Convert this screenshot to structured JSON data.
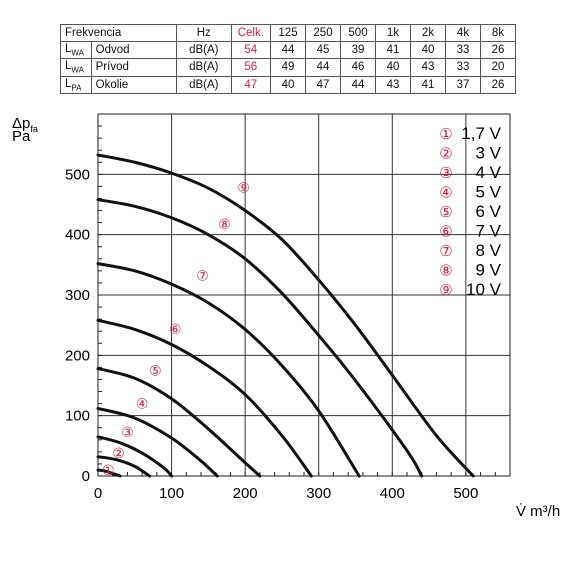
{
  "noise_table": {
    "header": [
      "Frekvencia",
      "Hz",
      "Celk.",
      "125",
      "250",
      "500",
      "1k",
      "2k",
      "4k",
      "8k"
    ],
    "rows": [
      {
        "label_main": "L",
        "label_sub": "WA",
        "name": "Odvod",
        "unit": "dB(A)",
        "total": "54",
        "values": [
          "44",
          "45",
          "39",
          "41",
          "40",
          "33",
          "26"
        ]
      },
      {
        "label_main": "L",
        "label_sub": "WA",
        "name": "Prívod",
        "unit": "dB(A)",
        "total": "56",
        "values": [
          "49",
          "44",
          "46",
          "40",
          "43",
          "33",
          "20"
        ]
      },
      {
        "label_main": "L",
        "label_sub": "PA",
        "name": "Okolie",
        "unit": "dB(A)",
        "total": "47",
        "values": [
          "40",
          "47",
          "44",
          "43",
          "41",
          "37",
          "26"
        ]
      }
    ],
    "total_color": "#d0203f"
  },
  "chart_data": {
    "type": "line",
    "ylabel_main": "Δp",
    "ylabel_sub": "fa",
    "ylabel_unit": "Pa",
    "xlabel": "V̇ m³/h",
    "xlim": [
      0,
      560
    ],
    "ylim": [
      0,
      600
    ],
    "x_ticks": [
      0,
      100,
      200,
      300,
      400,
      500
    ],
    "y_ticks": [
      0,
      100,
      200,
      300,
      400,
      500
    ],
    "grid": true,
    "legend_position": "top-right",
    "marker_color": "#d0203f",
    "series": [
      {
        "marker": "①",
        "name": "1,7 V",
        "points": [
          [
            0,
            10
          ],
          [
            10,
            8
          ],
          [
            20,
            4
          ],
          [
            30,
            0
          ]
        ]
      },
      {
        "marker": "②",
        "name": "3 V",
        "points": [
          [
            0,
            32
          ],
          [
            25,
            27
          ],
          [
            50,
            16
          ],
          [
            70,
            0
          ]
        ]
      },
      {
        "marker": "③",
        "name": "4 V",
        "points": [
          [
            0,
            65
          ],
          [
            30,
            55
          ],
          [
            60,
            38
          ],
          [
            90,
            13
          ],
          [
            100,
            0
          ]
        ]
      },
      {
        "marker": "④",
        "name": "5 V",
        "points": [
          [
            0,
            112
          ],
          [
            50,
            96
          ],
          [
            100,
            63
          ],
          [
            140,
            25
          ],
          [
            162,
            0
          ]
        ]
      },
      {
        "marker": "⑤",
        "name": "6 V",
        "points": [
          [
            0,
            178
          ],
          [
            50,
            162
          ],
          [
            100,
            128
          ],
          [
            150,
            78
          ],
          [
            200,
            22
          ],
          [
            220,
            0
          ]
        ]
      },
      {
        "marker": "⑥",
        "name": "7 V",
        "points": [
          [
            0,
            258
          ],
          [
            50,
            243
          ],
          [
            100,
            218
          ],
          [
            150,
            182
          ],
          [
            200,
            135
          ],
          [
            250,
            67
          ],
          [
            290,
            0
          ]
        ]
      },
      {
        "marker": "⑦",
        "name": "8 V",
        "points": [
          [
            0,
            352
          ],
          [
            50,
            340
          ],
          [
            100,
            318
          ],
          [
            150,
            287
          ],
          [
            200,
            243
          ],
          [
            250,
            183
          ],
          [
            300,
            108
          ],
          [
            355,
            0
          ]
        ]
      },
      {
        "marker": "⑧",
        "name": "9 V",
        "points": [
          [
            0,
            458
          ],
          [
            50,
            447
          ],
          [
            100,
            428
          ],
          [
            150,
            400
          ],
          [
            200,
            360
          ],
          [
            250,
            303
          ],
          [
            300,
            233
          ],
          [
            350,
            158
          ],
          [
            420,
            42
          ],
          [
            440,
            0
          ]
        ]
      },
      {
        "marker": "⑨",
        "name": "10 V",
        "points": [
          [
            0,
            532
          ],
          [
            50,
            520
          ],
          [
            100,
            502
          ],
          [
            150,
            477
          ],
          [
            200,
            440
          ],
          [
            250,
            392
          ],
          [
            300,
            325
          ],
          [
            350,
            250
          ],
          [
            400,
            167
          ],
          [
            460,
            67
          ],
          [
            510,
            0
          ]
        ]
      }
    ],
    "curve_labels": [
      {
        "marker": "①",
        "x": 14,
        "y": 10
      },
      {
        "marker": "②",
        "x": 28,
        "y": 38
      },
      {
        "marker": "③",
        "x": 40,
        "y": 73
      },
      {
        "marker": "④",
        "x": 60,
        "y": 120
      },
      {
        "marker": "⑤",
        "x": 78,
        "y": 175
      },
      {
        "marker": "⑥",
        "x": 105,
        "y": 244
      },
      {
        "marker": "⑦",
        "x": 142,
        "y": 332
      },
      {
        "marker": "⑧",
        "x": 172,
        "y": 418
      },
      {
        "marker": "⑨",
        "x": 198,
        "y": 478
      }
    ]
  }
}
